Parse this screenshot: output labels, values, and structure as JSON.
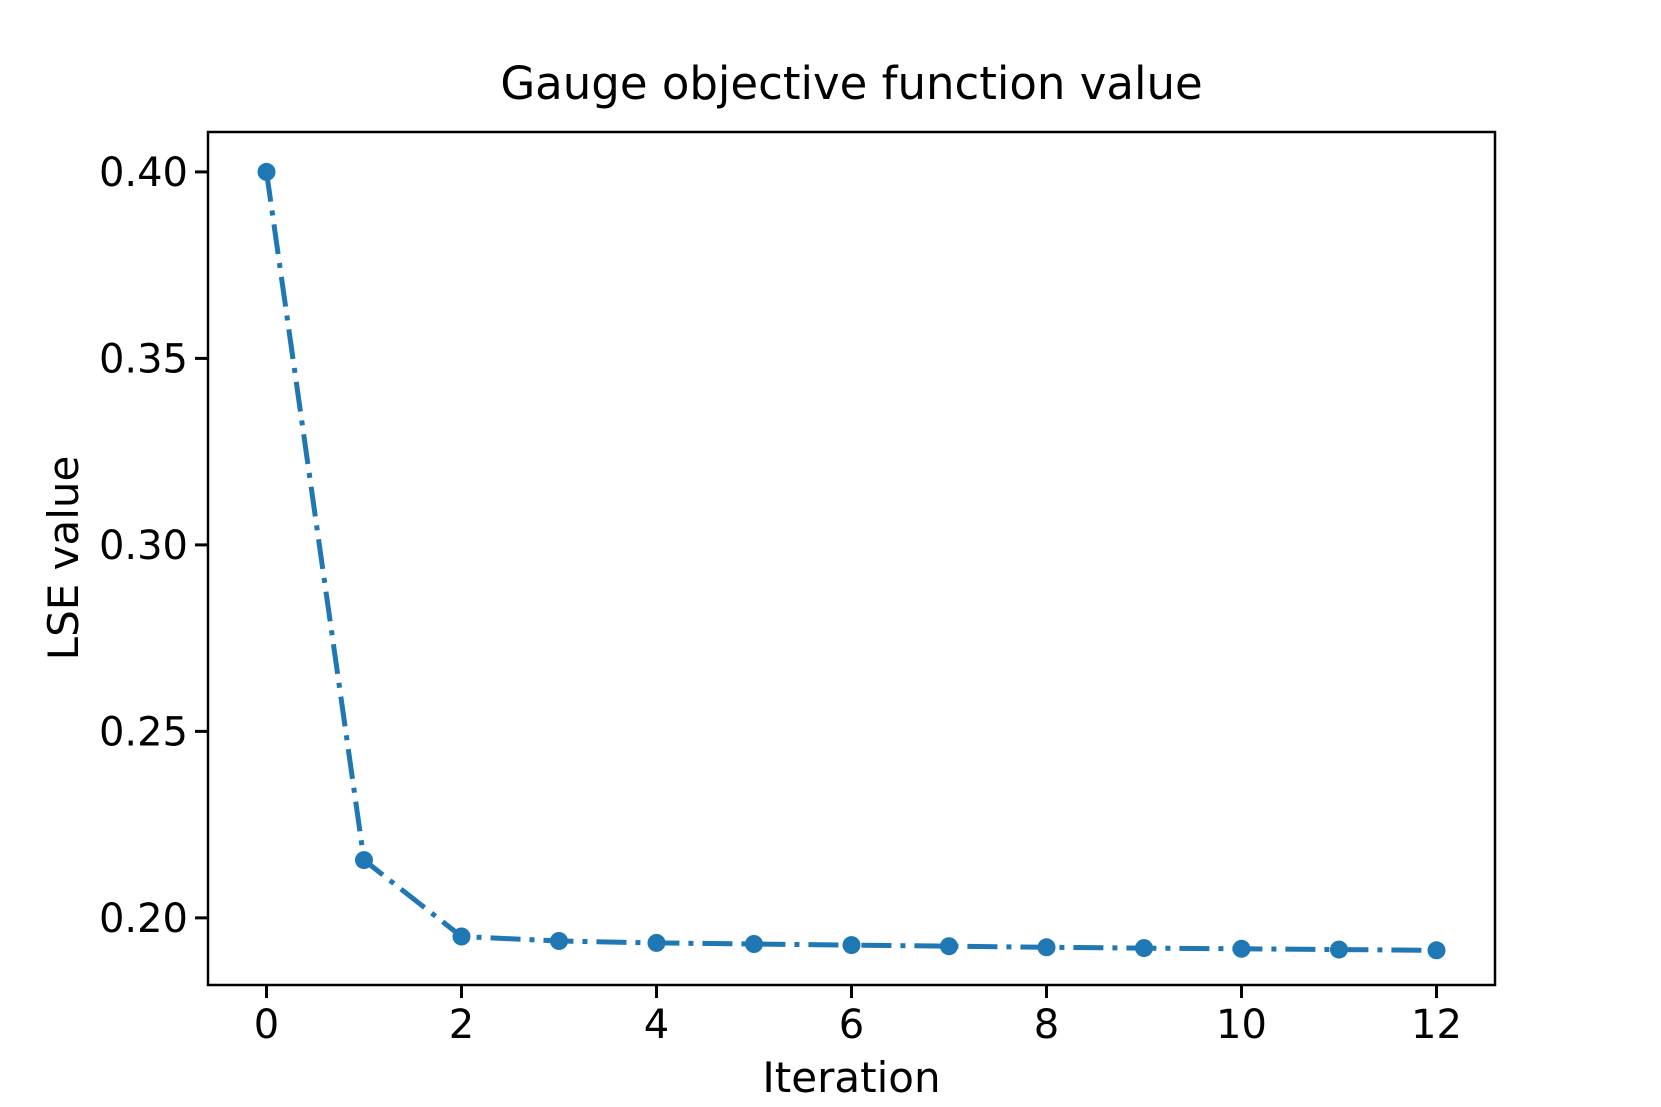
{
  "figure": {
    "background": "#ffffff",
    "spine_color": "#000000",
    "tick_color": "#000000"
  },
  "chart_data": {
    "type": "line",
    "title": "Gauge objective function value",
    "xlabel": "Iteration",
    "ylabel": "LSE value",
    "series": [
      {
        "name": "LSE value",
        "x": [
          0,
          1,
          2,
          3,
          4,
          5,
          6,
          7,
          8,
          9,
          10,
          11,
          12
        ],
        "y": [
          0.4,
          0.2155,
          0.195,
          0.1938,
          0.1933,
          0.193,
          0.1927,
          0.1924,
          0.1921,
          0.1919,
          0.1917,
          0.1915,
          0.1913
        ],
        "color": "#1f77b4",
        "line_style": "dashdot",
        "marker": "circle"
      }
    ],
    "xlim": [
      -0.6,
      12.6
    ],
    "ylim": [
      0.182,
      0.4107
    ],
    "x_ticks": [
      0,
      2,
      4,
      6,
      8,
      10,
      12
    ],
    "y_ticks": [
      "0.20",
      "0.25",
      "0.30",
      "0.35",
      "0.40"
    ],
    "grid": false,
    "legend_position": "none"
  }
}
